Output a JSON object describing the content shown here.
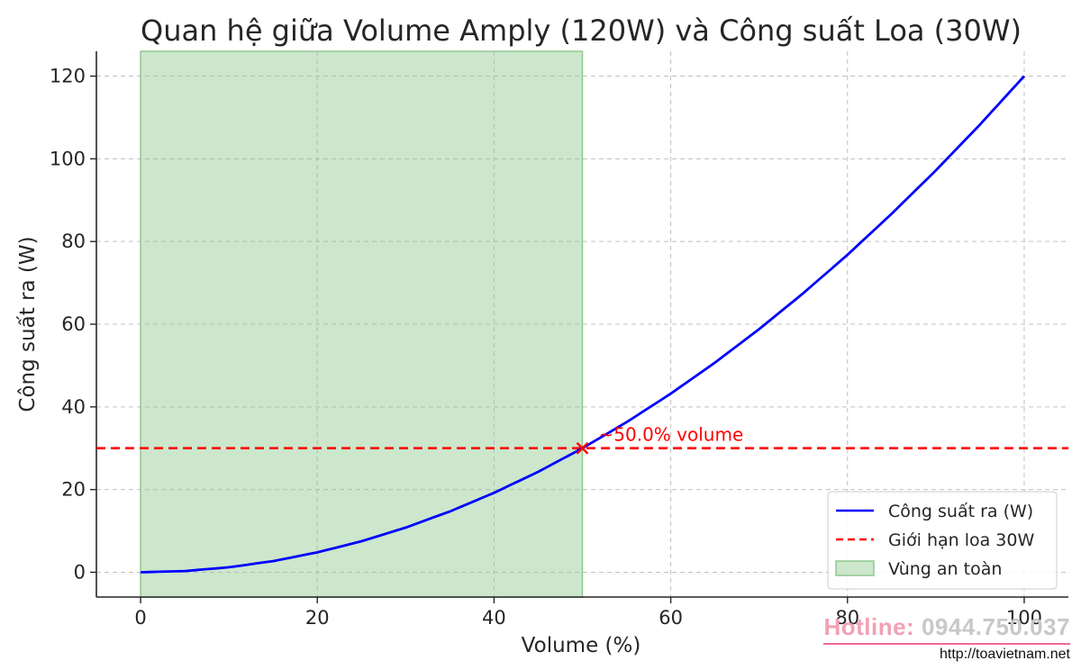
{
  "chart_data": {
    "type": "line",
    "title": "Quan hệ giữa Volume Amply (120W) và Công suất Loa (30W)",
    "xlabel": "Volume (%)",
    "ylabel": "Công suất ra (W)",
    "xlim": [
      -5,
      105
    ],
    "ylim": [
      -6,
      126
    ],
    "xticks": [
      0,
      20,
      40,
      60,
      80,
      100
    ],
    "yticks": [
      0,
      20,
      40,
      60,
      80,
      100,
      120
    ],
    "grid": true,
    "legend_position": "lower-right",
    "series": [
      {
        "name": "Công suất ra (W)",
        "style": "solid",
        "color": "#0000ff",
        "x": [
          0,
          5,
          10,
          15,
          20,
          25,
          30,
          35,
          40,
          45,
          50,
          55,
          60,
          65,
          70,
          75,
          80,
          85,
          90,
          95,
          100
        ],
        "y": [
          0,
          0.3,
          1.2,
          2.7,
          4.8,
          7.5,
          10.8,
          14.7,
          19.2,
          24.3,
          30,
          36.3,
          43.2,
          50.7,
          58.8,
          67.5,
          76.8,
          86.7,
          97.2,
          108.3,
          120
        ]
      }
    ],
    "hline": {
      "name": "Giới hạn loa 30W",
      "y": 30,
      "style": "dashed",
      "color": "#ff0000"
    },
    "shaded_region": {
      "name": "Vùng an toàn",
      "x_start": 0,
      "x_end": 50,
      "color": "#8fc98f"
    },
    "marker": {
      "x": 50,
      "y": 30,
      "symbol": "x",
      "color": "#ff0000"
    },
    "annotation": {
      "text": "~50.0% volume",
      "x": 50,
      "y": 30,
      "color": "#ff0000"
    }
  },
  "watermark": {
    "hotline_label": "Hotline:",
    "hotline_number": "0944.750.037",
    "url": "http://toavietnam.net"
  }
}
